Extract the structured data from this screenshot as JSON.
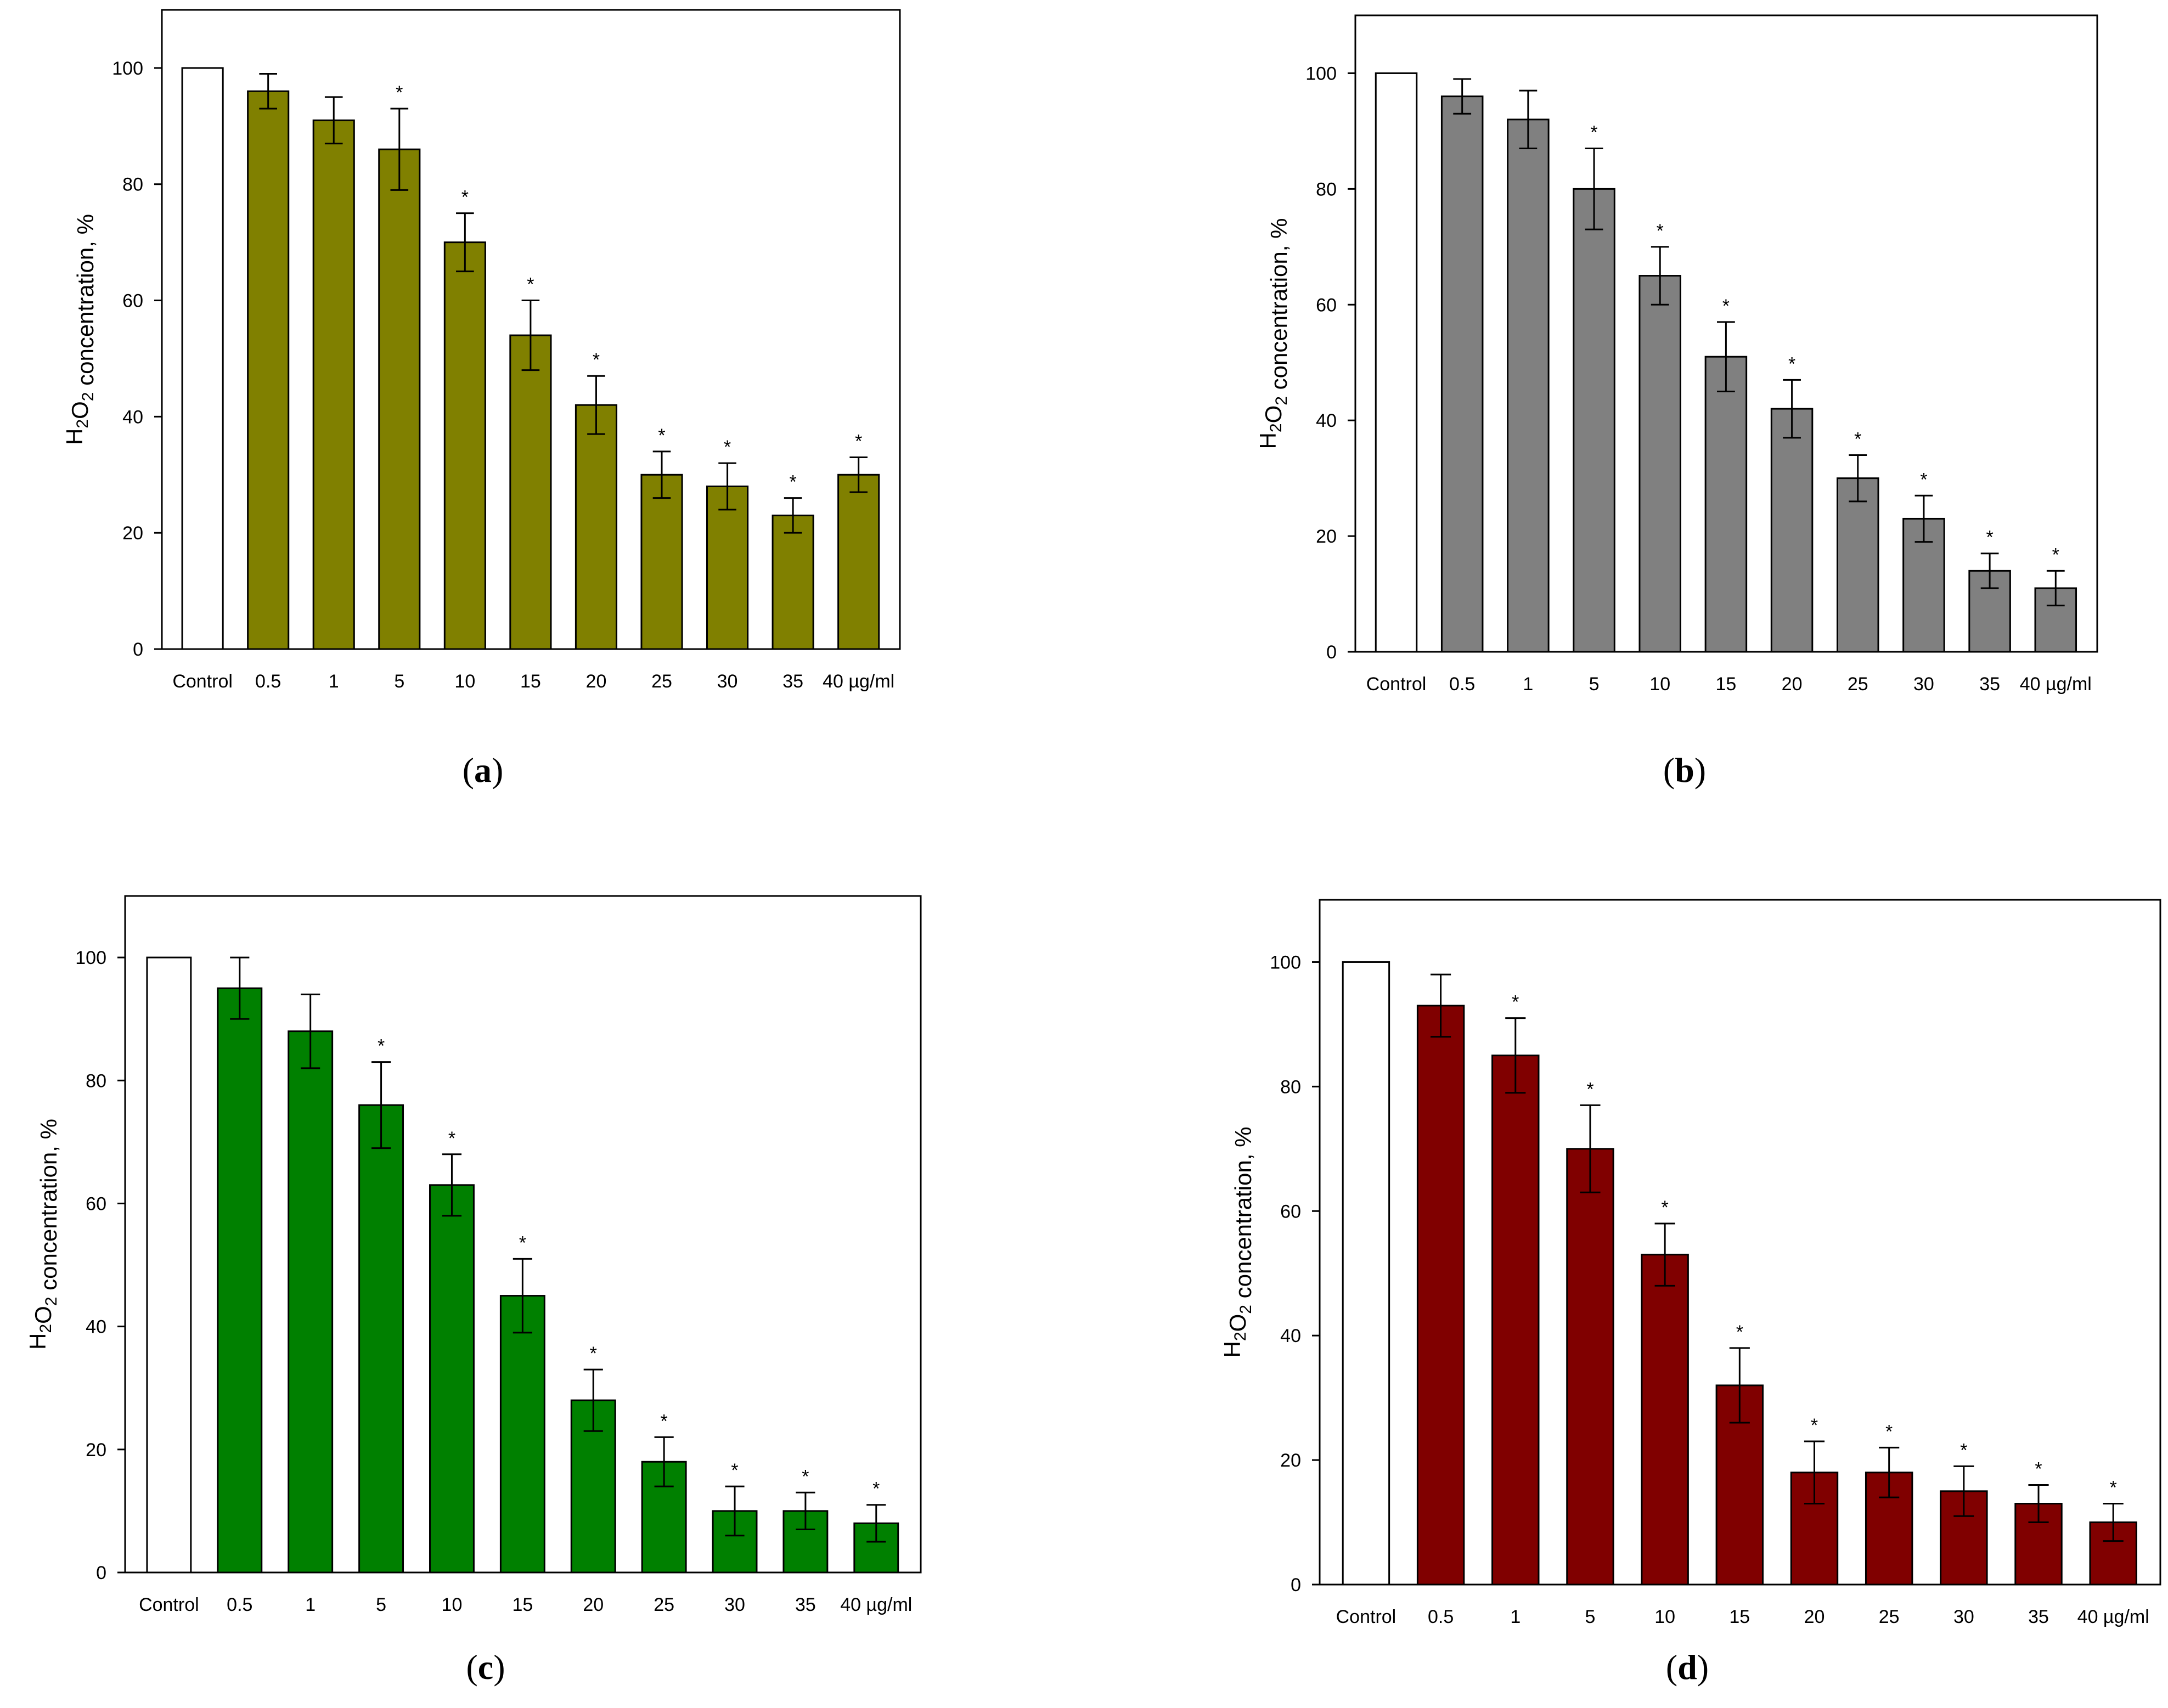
{
  "chart_data": [
    {
      "type": "bar",
      "panel_label": "a",
      "bar_color": "#808000",
      "control_color": "#ffffff",
      "ylabel": "H2O2 concentration, %",
      "ylim": [
        0,
        110
      ],
      "yticks": [
        0,
        20,
        40,
        60,
        80,
        100
      ],
      "categories": [
        "Control",
        "0.5",
        "1",
        "5",
        "10",
        "15",
        "20",
        "25",
        "30",
        "35",
        "40 µg/ml"
      ],
      "values": [
        100,
        96,
        91,
        86,
        70,
        54,
        42,
        30,
        28,
        23,
        30
      ],
      "errors": [
        0,
        3,
        4,
        7,
        5,
        6,
        5,
        4,
        4,
        3,
        3
      ],
      "significant": [
        false,
        false,
        false,
        true,
        true,
        true,
        true,
        true,
        true,
        true,
        true
      ],
      "star_symbol": "*"
    },
    {
      "type": "bar",
      "panel_label": "b",
      "bar_color": "#808080",
      "control_color": "#ffffff",
      "ylabel": "H2O2 concentration, %",
      "ylim": [
        0,
        110
      ],
      "yticks": [
        0,
        20,
        40,
        60,
        80,
        100
      ],
      "categories": [
        "Control",
        "0.5",
        "1",
        "5",
        "10",
        "15",
        "20",
        "25",
        "30",
        "35",
        "40 µg/ml"
      ],
      "values": [
        100,
        96,
        92,
        80,
        65,
        51,
        42,
        30,
        23,
        14,
        11
      ],
      "errors": [
        0,
        3,
        5,
        7,
        5,
        6,
        5,
        4,
        4,
        3,
        3
      ],
      "significant": [
        false,
        false,
        false,
        true,
        true,
        true,
        true,
        true,
        true,
        true,
        true
      ],
      "star_symbol": "*"
    },
    {
      "type": "bar",
      "panel_label": "c",
      "bar_color": "#008000",
      "control_color": "#ffffff",
      "ylabel": "H2O2 concentration, %",
      "ylim": [
        0,
        110
      ],
      "yticks": [
        0,
        20,
        40,
        60,
        80,
        100
      ],
      "categories": [
        "Control",
        "0.5",
        "1",
        "5",
        "10",
        "15",
        "20",
        "25",
        "30",
        "35",
        "40 µg/ml"
      ],
      "values": [
        100,
        95,
        88,
        76,
        63,
        45,
        28,
        18,
        10,
        10,
        8
      ],
      "errors": [
        0,
        5,
        6,
        7,
        5,
        6,
        5,
        4,
        4,
        3,
        3
      ],
      "significant": [
        false,
        false,
        false,
        true,
        true,
        true,
        true,
        true,
        true,
        true,
        true
      ],
      "star_symbol": "*"
    },
    {
      "type": "bar",
      "panel_label": "d",
      "bar_color": "#800000",
      "control_color": "#ffffff",
      "ylabel": "H2O2 concentration, %",
      "ylim": [
        0,
        110
      ],
      "yticks": [
        0,
        20,
        40,
        60,
        80,
        100
      ],
      "categories": [
        "Control",
        "0.5",
        "1",
        "5",
        "10",
        "15",
        "20",
        "25",
        "30",
        "35",
        "40 µg/ml"
      ],
      "values": [
        100,
        93,
        85,
        70,
        53,
        32,
        18,
        18,
        15,
        13,
        10
      ],
      "errors": [
        0,
        5,
        6,
        7,
        5,
        6,
        5,
        4,
        4,
        3,
        3
      ],
      "significant": [
        false,
        false,
        true,
        true,
        true,
        true,
        true,
        true,
        true,
        true,
        true
      ],
      "star_symbol": "*"
    }
  ]
}
